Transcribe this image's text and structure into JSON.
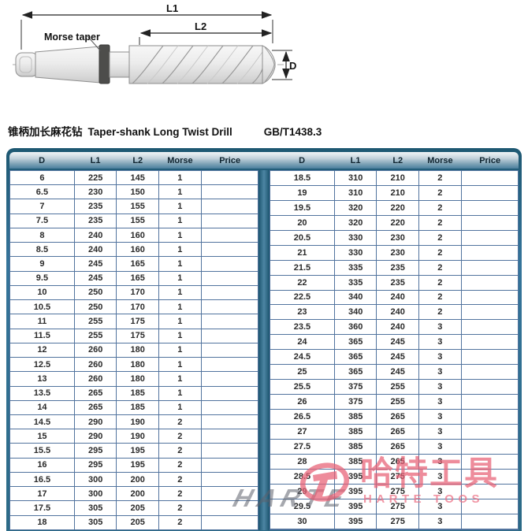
{
  "diagram": {
    "dim_l1": "L1",
    "dim_l2": "L2",
    "dim_d": "D",
    "morse_taper_label": "Morse taper"
  },
  "title": {
    "zh": "锥柄加长麻花钻",
    "en": "Taper-shank Long Twist Drill",
    "standard": "GB/T1438.3"
  },
  "tables": {
    "headers": [
      "D",
      "L1",
      "L2",
      "Morse",
      "Price"
    ],
    "left_rows": [
      [
        "6",
        "225",
        "145",
        "1",
        ""
      ],
      [
        "6.5",
        "230",
        "150",
        "1",
        ""
      ],
      [
        "7",
        "235",
        "155",
        "1",
        ""
      ],
      [
        "7.5",
        "235",
        "155",
        "1",
        ""
      ],
      [
        "8",
        "240",
        "160",
        "1",
        ""
      ],
      [
        "8.5",
        "240",
        "160",
        "1",
        ""
      ],
      [
        "9",
        "245",
        "165",
        "1",
        ""
      ],
      [
        "9.5",
        "245",
        "165",
        "1",
        ""
      ],
      [
        "10",
        "250",
        "170",
        "1",
        ""
      ],
      [
        "10.5",
        "250",
        "170",
        "1",
        ""
      ],
      [
        "11",
        "255",
        "175",
        "1",
        ""
      ],
      [
        "11.5",
        "255",
        "175",
        "1",
        ""
      ],
      [
        "12",
        "260",
        "180",
        "1",
        ""
      ],
      [
        "12.5",
        "260",
        "180",
        "1",
        ""
      ],
      [
        "13",
        "260",
        "180",
        "1",
        ""
      ],
      [
        "13.5",
        "265",
        "185",
        "1",
        ""
      ],
      [
        "14",
        "265",
        "185",
        "1",
        ""
      ],
      [
        "14.5",
        "290",
        "190",
        "2",
        ""
      ],
      [
        "15",
        "290",
        "190",
        "2",
        ""
      ],
      [
        "15.5",
        "295",
        "195",
        "2",
        ""
      ],
      [
        "16",
        "295",
        "195",
        "2",
        ""
      ],
      [
        "16.5",
        "300",
        "200",
        "2",
        ""
      ],
      [
        "17",
        "300",
        "200",
        "2",
        ""
      ],
      [
        "17.5",
        "305",
        "205",
        "2",
        ""
      ],
      [
        "18",
        "305",
        "205",
        "2",
        ""
      ]
    ],
    "right_rows": [
      [
        "18.5",
        "310",
        "210",
        "2",
        ""
      ],
      [
        "19",
        "310",
        "210",
        "2",
        ""
      ],
      [
        "19.5",
        "320",
        "220",
        "2",
        ""
      ],
      [
        "20",
        "320",
        "220",
        "2",
        ""
      ],
      [
        "20.5",
        "330",
        "230",
        "2",
        ""
      ],
      [
        "21",
        "330",
        "230",
        "2",
        ""
      ],
      [
        "21.5",
        "335",
        "235",
        "2",
        ""
      ],
      [
        "22",
        "335",
        "235",
        "2",
        ""
      ],
      [
        "22.5",
        "340",
        "240",
        "2",
        ""
      ],
      [
        "23",
        "340",
        "240",
        "2",
        ""
      ],
      [
        "23.5",
        "360",
        "240",
        "3",
        ""
      ],
      [
        "24",
        "365",
        "245",
        "3",
        ""
      ],
      [
        "24.5",
        "365",
        "245",
        "3",
        ""
      ],
      [
        "25",
        "365",
        "245",
        "3",
        ""
      ],
      [
        "25.5",
        "375",
        "255",
        "3",
        ""
      ],
      [
        "26",
        "375",
        "255",
        "3",
        ""
      ],
      [
        "26.5",
        "385",
        "265",
        "3",
        ""
      ],
      [
        "27",
        "385",
        "265",
        "3",
        ""
      ],
      [
        "27.5",
        "385",
        "265",
        "3",
        ""
      ],
      [
        "28",
        "385",
        "265",
        "3",
        ""
      ],
      [
        "28.5",
        "395",
        "275",
        "3",
        ""
      ],
      [
        "29",
        "395",
        "275",
        "3",
        ""
      ],
      [
        "29.5",
        "395",
        "275",
        "3",
        ""
      ],
      [
        "30",
        "395",
        "275",
        "3",
        ""
      ],
      [
        "",
        "",
        "",
        "",
        ""
      ]
    ]
  },
  "watermark": {
    "ghost_text": "HARTE",
    "brand_zh": "哈特工具",
    "brand_en": "HARTE TOOS"
  },
  "colors": {
    "panel_teal": "#2b6a86",
    "cell_border": "#51739e",
    "watermark_pink": "#e86075"
  }
}
